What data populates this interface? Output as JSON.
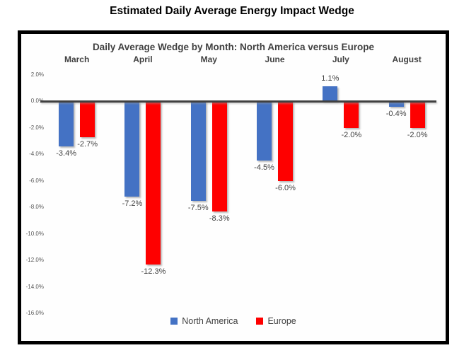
{
  "page_title": "Estimated Daily Average Energy Impact Wedge",
  "chart_data": {
    "type": "bar",
    "title": "Daily Average Wedge by Month: North America versus Europe",
    "categories": [
      "March",
      "April",
      "May",
      "June",
      "July",
      "August"
    ],
    "series": [
      {
        "name": "North America",
        "color": "#4472C4",
        "values": [
          -3.4,
          -7.2,
          -7.5,
          -4.5,
          1.1,
          -0.4
        ],
        "labels": [
          "-3.4%",
          "-7.2%",
          "-7.5%",
          "-4.5%",
          "1.1%",
          "-0.4%"
        ]
      },
      {
        "name": "Europe",
        "color": "#FE0000",
        "values": [
          -2.7,
          -12.3,
          -8.3,
          -6.0,
          -2.0,
          -2.0
        ],
        "labels": [
          "-2.7%",
          "-12.3%",
          "-8.3%",
          "-6.0%",
          "-2.0%",
          "-2.0%"
        ]
      }
    ],
    "y_ticks": [
      {
        "label": "2.0%",
        "value": 2
      },
      {
        "label": "0.0%",
        "value": 0
      },
      {
        "label": "-2.0%",
        "value": -2
      },
      {
        "label": "-4.0%",
        "value": -4
      },
      {
        "label": "-6.0%",
        "value": -6
      },
      {
        "label": "-8.0%",
        "value": -8
      },
      {
        "label": "-10.0%",
        "value": -10
      },
      {
        "label": "-12.0%",
        "value": -12
      },
      {
        "label": "-14.0%",
        "value": -14
      },
      {
        "label": "-16.0%",
        "value": -16
      }
    ],
    "ylim": [
      -16,
      2
    ],
    "grid": false,
    "legend_position": "bottom",
    "axis_color": "#404040",
    "tick_color": "#595959",
    "label_color": "#404040"
  }
}
